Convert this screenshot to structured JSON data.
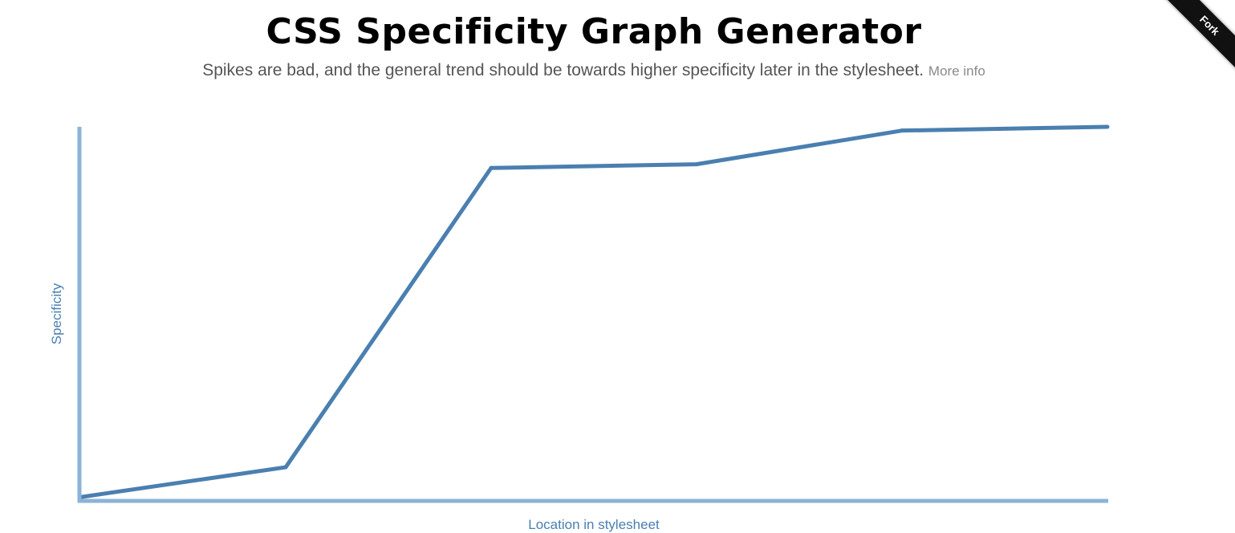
{
  "header": {
    "title": "CSS Specificity Graph Generator",
    "subtitle": "Spikes are bad, and the general trend should be towards higher specificity later in the stylesheet.",
    "more_info_label": "More info"
  },
  "fork_ribbon": {
    "label": "Fork"
  },
  "colors": {
    "line": "#4a7fb0",
    "axis": "#8db3d6",
    "axis_label": "#4a7fb0"
  },
  "chart_data": {
    "type": "line",
    "title": "",
    "xlabel": "Location in stylesheet",
    "ylabel": "Specificity",
    "grid": false,
    "xlim": [
      0,
      5
    ],
    "ylim": [
      0,
      100
    ],
    "series": [
      {
        "x": [
          0,
          1,
          2,
          3,
          4,
          5
        ],
        "values": [
          1,
          9,
          89,
          90,
          99,
          100
        ]
      }
    ]
  }
}
